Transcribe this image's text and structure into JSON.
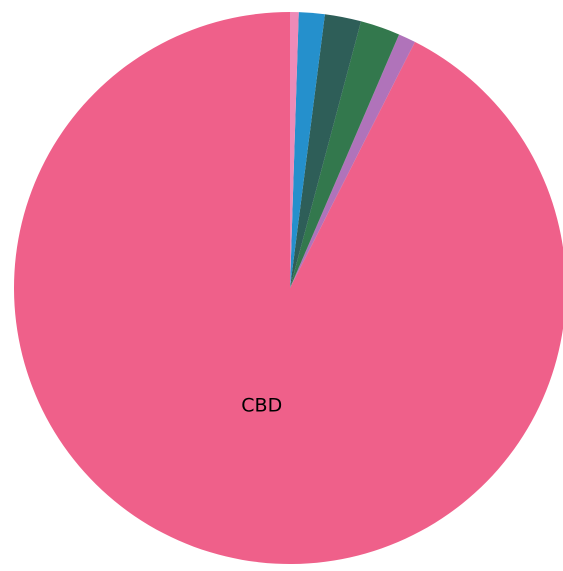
{
  "chart_data": {
    "type": "pie",
    "title": "",
    "slices": [
      {
        "label": "CBD",
        "value": 91.6,
        "color": "#ef608a"
      },
      {
        "label": "",
        "value": 1.0,
        "color": "#b073ba"
      },
      {
        "label": "",
        "value": 2.3,
        "color": "#33784d"
      },
      {
        "label": "",
        "value": 2.1,
        "color": "#2e5e58"
      },
      {
        "label": "",
        "value": 1.5,
        "color": "#2590cc"
      },
      {
        "label": "",
        "value": 0.5,
        "color": "#ee8ab7"
      }
    ],
    "start": "top",
    "direction": "counterclockwise",
    "legend": "none"
  }
}
